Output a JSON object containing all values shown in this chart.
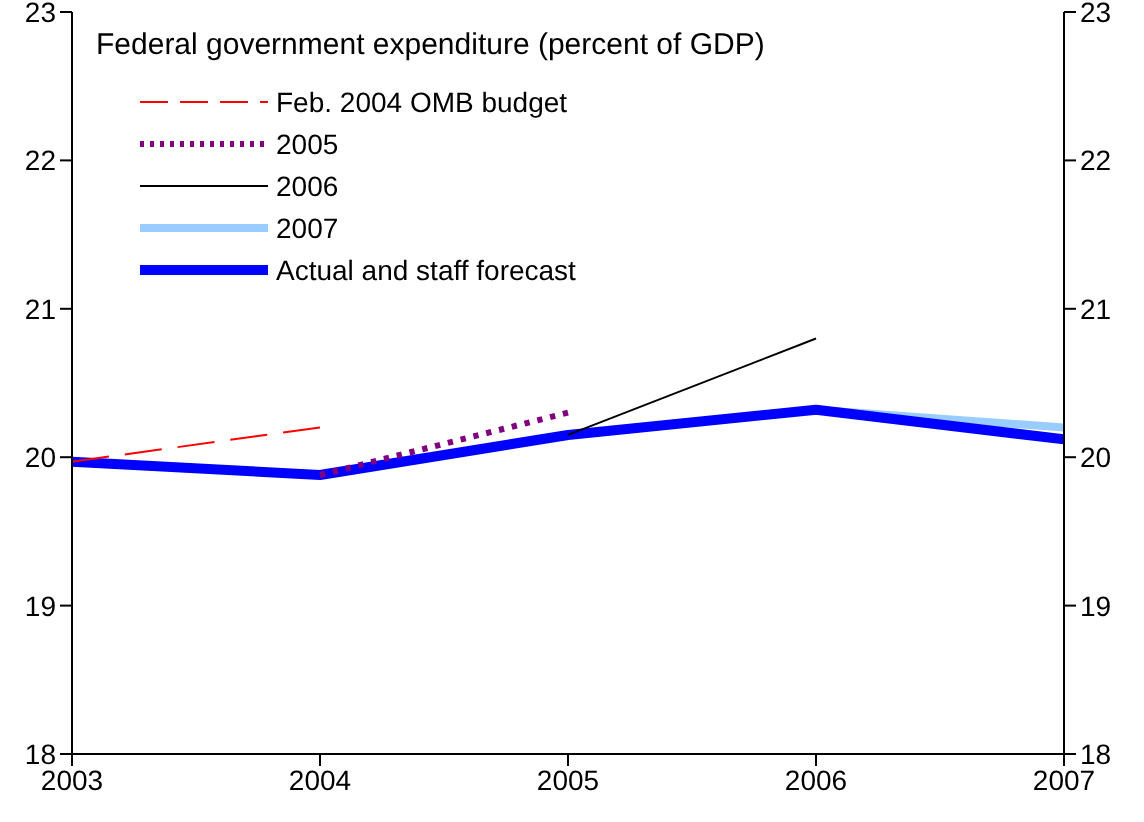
{
  "chart_data": {
    "type": "line",
    "title": "Federal government expenditure (percent of GDP)",
    "xlim": [
      2003,
      2007
    ],
    "xticks": [
      2003,
      2004,
      2005,
      2006,
      2007
    ],
    "ylim": [
      18,
      23
    ],
    "yticks": [
      18,
      19,
      20,
      21,
      22,
      23
    ],
    "y2lim": [
      18,
      23
    ],
    "y2ticks": [
      18,
      19,
      20,
      21,
      22,
      23
    ],
    "legend": "top left",
    "grid": false,
    "marker": "none",
    "series": [
      {
        "name": "Feb. 2004 OMB budget",
        "color": "#ff0000",
        "line_style": "dashed",
        "x": [
          2003,
          2004
        ],
        "values": [
          19.97,
          20.2
        ]
      },
      {
        "name": "2005",
        "color": "#800080",
        "line_style": "dotted",
        "x": [
          2004,
          2005
        ],
        "values": [
          19.88,
          20.3
        ]
      },
      {
        "name": "2006",
        "color": "#000000",
        "line_style": "solid",
        "x": [
          2005,
          2006
        ],
        "values": [
          20.15,
          20.8
        ]
      },
      {
        "name": "2007",
        "color": "#99ccff",
        "line_style": "solid",
        "x": [
          2006,
          2007
        ],
        "values": [
          20.32,
          20.2
        ]
      },
      {
        "name": "Actual and staff forecast",
        "color": "#0000ff",
        "line_style": "solid",
        "x": [
          2003,
          2004,
          2005,
          2006,
          2007
        ],
        "values": [
          19.97,
          19.88,
          20.15,
          20.32,
          20.12
        ]
      }
    ]
  }
}
